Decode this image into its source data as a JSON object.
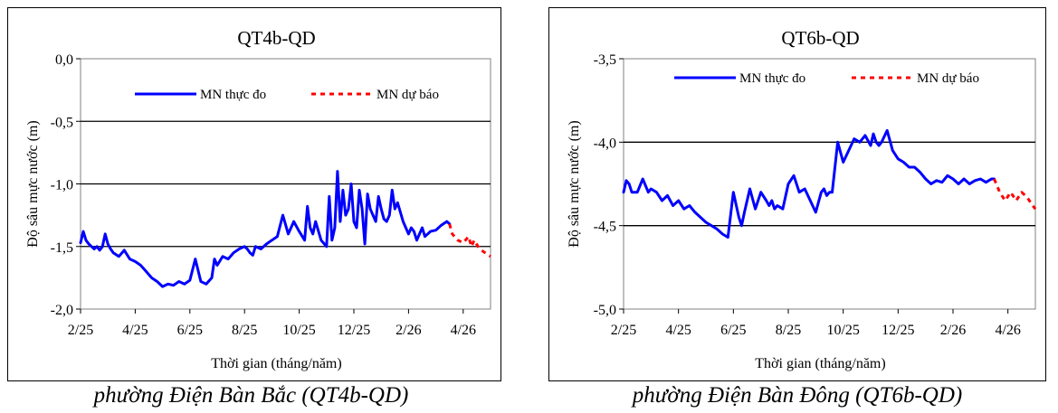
{
  "chart_data": [
    {
      "type": "line",
      "title": "QT4b-QD",
      "xlabel": "Thời gian (tháng/năm)",
      "ylabel": "Độ sâu mực nước (m)",
      "ylim": [
        -2.0,
        0.0
      ],
      "yticks": [
        "0,0",
        "-0,5",
        "-1,0",
        "-1,5",
        "-2,0"
      ],
      "ytick_values": [
        0.0,
        -0.5,
        -1.0,
        -1.5,
        -2.0
      ],
      "xticks": [
        "2/25",
        "4/25",
        "6/25",
        "8/25",
        "10/25",
        "12/25",
        "2/26",
        "4/26"
      ],
      "xlim": [
        0,
        15
      ],
      "grid": "horizontal",
      "legend": "top",
      "caption": "phường Điện Bàn Bắc (QT4b-QD)",
      "series": [
        {
          "name": "MN thực đo",
          "color": "#0000ff",
          "style": "solid",
          "x": [
            0.0,
            0.1,
            0.2,
            0.3,
            0.4,
            0.5,
            0.6,
            0.7,
            0.8,
            0.9,
            1.0,
            1.1,
            1.2,
            1.4,
            1.6,
            1.8,
            2.0,
            2.2,
            2.4,
            2.6,
            2.8,
            3.0,
            3.2,
            3.4,
            3.6,
            3.8,
            4.0,
            4.2,
            4.4,
            4.6,
            4.8,
            4.9,
            5.0,
            5.2,
            5.4,
            5.6,
            5.8,
            6.0,
            6.1,
            6.2,
            6.3,
            6.4,
            6.6,
            6.8,
            7.0,
            7.2,
            7.4,
            7.6,
            7.8,
            8.0,
            8.2,
            8.3,
            8.4,
            8.5,
            8.6,
            8.8,
            9.0,
            9.1,
            9.2,
            9.3,
            9.4,
            9.5,
            9.6,
            9.7,
            9.8,
            9.9,
            10.0,
            10.1,
            10.2,
            10.3,
            10.4,
            10.5,
            10.6,
            10.7,
            10.8,
            10.9,
            11.0,
            11.1,
            11.2,
            11.3,
            11.4,
            11.5,
            11.6,
            11.8,
            12.0,
            12.1,
            12.2,
            12.3,
            12.4,
            12.5,
            12.6,
            12.8,
            13.0,
            13.2,
            13.4,
            13.5
          ],
          "y": [
            -1.47,
            -1.38,
            -1.45,
            -1.48,
            -1.5,
            -1.52,
            -1.5,
            -1.53,
            -1.5,
            -1.4,
            -1.48,
            -1.52,
            -1.55,
            -1.58,
            -1.53,
            -1.6,
            -1.62,
            -1.65,
            -1.7,
            -1.75,
            -1.78,
            -1.82,
            -1.8,
            -1.81,
            -1.78,
            -1.8,
            -1.77,
            -1.6,
            -1.78,
            -1.8,
            -1.75,
            -1.6,
            -1.65,
            -1.58,
            -1.6,
            -1.55,
            -1.52,
            -1.5,
            -1.52,
            -1.55,
            -1.57,
            -1.5,
            -1.52,
            -1.48,
            -1.45,
            -1.42,
            -1.25,
            -1.4,
            -1.3,
            -1.38,
            -1.45,
            -1.18,
            -1.35,
            -1.4,
            -1.3,
            -1.45,
            -1.5,
            -1.1,
            -1.45,
            -1.35,
            -0.9,
            -1.3,
            -1.05,
            -1.25,
            -1.2,
            -1.0,
            -1.3,
            -1.35,
            -1.05,
            -1.2,
            -1.48,
            -1.08,
            -1.2,
            -1.25,
            -1.3,
            -1.1,
            -1.2,
            -1.28,
            -1.3,
            -1.25,
            -1.05,
            -1.2,
            -1.15,
            -1.3,
            -1.4,
            -1.35,
            -1.38,
            -1.45,
            -1.4,
            -1.35,
            -1.42,
            -1.38,
            -1.37,
            -1.33,
            -1.3,
            -1.32
          ]
        },
        {
          "name": "MN dự báo",
          "color": "#ff0000",
          "style": "dashed",
          "x": [
            13.5,
            13.6,
            13.8,
            14.0,
            14.2,
            14.3,
            14.4,
            14.6,
            14.8,
            15.0
          ],
          "y": [
            -1.32,
            -1.4,
            -1.45,
            -1.47,
            -1.42,
            -1.5,
            -1.45,
            -1.52,
            -1.55,
            -1.58
          ]
        }
      ]
    },
    {
      "type": "line",
      "title": "QT6b-QD",
      "xlabel": "Thời gian (tháng/năm)",
      "ylabel": "Độ sâu mực nước (m)",
      "ylim": [
        -5.0,
        -3.5
      ],
      "yticks": [
        "-3,5",
        "-4,0",
        "-4,5",
        "-5,0"
      ],
      "ytick_values": [
        -3.5,
        -4.0,
        -4.5,
        -5.0
      ],
      "xticks": [
        "2/25",
        "4/25",
        "6/25",
        "8/25",
        "10/25",
        "12/25",
        "2/26",
        "4/26"
      ],
      "xlim": [
        0,
        15
      ],
      "grid": "horizontal",
      "legend": "top",
      "caption": "phường Điện Bàn Đông (QT6b-QD)",
      "series": [
        {
          "name": "MN thực đo",
          "color": "#0000ff",
          "style": "solid",
          "x": [
            0.0,
            0.1,
            0.2,
            0.3,
            0.5,
            0.7,
            0.9,
            1.0,
            1.2,
            1.4,
            1.6,
            1.8,
            2.0,
            2.2,
            2.4,
            2.6,
            2.8,
            3.0,
            3.2,
            3.4,
            3.6,
            3.8,
            4.0,
            4.2,
            4.3,
            4.4,
            4.6,
            4.8,
            5.0,
            5.2,
            5.3,
            5.4,
            5.5,
            5.6,
            5.8,
            6.0,
            6.2,
            6.4,
            6.6,
            6.8,
            7.0,
            7.2,
            7.3,
            7.4,
            7.5,
            7.6,
            7.8,
            8.0,
            8.2,
            8.4,
            8.6,
            8.8,
            9.0,
            9.1,
            9.2,
            9.3,
            9.4,
            9.6,
            9.8,
            10.0,
            10.2,
            10.4,
            10.6,
            10.8,
            11.0,
            11.2,
            11.4,
            11.6,
            11.8,
            12.0,
            12.2,
            12.4,
            12.6,
            12.8,
            13.0,
            13.2,
            13.4,
            13.5
          ],
          "y": [
            -4.3,
            -4.23,
            -4.25,
            -4.3,
            -4.3,
            -4.22,
            -4.3,
            -4.28,
            -4.3,
            -4.35,
            -4.32,
            -4.38,
            -4.35,
            -4.4,
            -4.38,
            -4.42,
            -4.45,
            -4.48,
            -4.5,
            -4.52,
            -4.55,
            -4.57,
            -4.3,
            -4.45,
            -4.5,
            -4.42,
            -4.28,
            -4.4,
            -4.3,
            -4.35,
            -4.38,
            -4.35,
            -4.4,
            -4.38,
            -4.4,
            -4.25,
            -4.2,
            -4.3,
            -4.28,
            -4.35,
            -4.42,
            -4.3,
            -4.28,
            -4.32,
            -4.3,
            -4.3,
            -4.0,
            -4.12,
            -4.05,
            -3.98,
            -4.0,
            -3.96,
            -4.02,
            -3.95,
            -4.0,
            -4.02,
            -4.0,
            -3.93,
            -4.05,
            -4.1,
            -4.12,
            -4.15,
            -4.15,
            -4.18,
            -4.22,
            -4.25,
            -4.23,
            -4.24,
            -4.2,
            -4.22,
            -4.25,
            -4.22,
            -4.25,
            -4.23,
            -4.22,
            -4.24,
            -4.22,
            -4.22
          ],
          "x_fix_note": ""
        },
        {
          "name": "MN dự báo",
          "color": "#ff0000",
          "style": "dashed",
          "x": [
            13.5,
            13.7,
            13.9,
            14.1,
            14.3,
            14.5,
            14.7,
            14.9,
            15.0
          ],
          "y": [
            -4.22,
            -4.3,
            -4.35,
            -4.3,
            -4.35,
            -4.3,
            -4.33,
            -4.38,
            -4.4
          ]
        }
      ]
    }
  ]
}
